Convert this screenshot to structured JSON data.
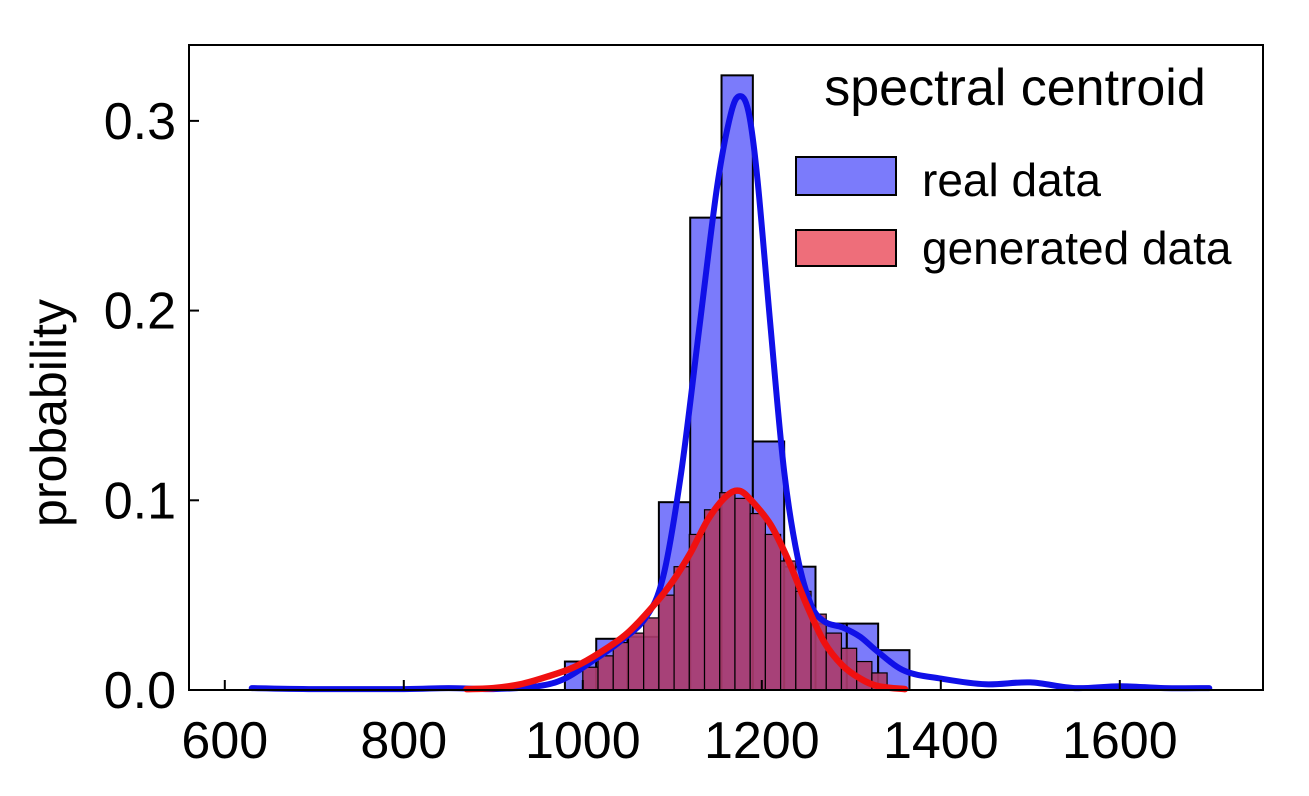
{
  "chart_data": {
    "type": "bar",
    "title": "spectral centroid",
    "xlabel": "",
    "ylabel": "probability",
    "xlim": [
      560,
      1760
    ],
    "ylim": [
      0,
      0.34
    ],
    "xticks": [
      "600",
      "800",
      "1000",
      "1200",
      "1400",
      "1600"
    ],
    "xtick_values": [
      600,
      800,
      1000,
      1200,
      1400,
      1600
    ],
    "yticks": [
      "0.0",
      "0.1",
      "0.2",
      "0.3"
    ],
    "ytick_values": [
      0,
      0.1,
      0.2,
      0.3
    ],
    "grid": false,
    "legend_position": "top-right",
    "colors": {
      "real_fill": "#7b7bfb",
      "real_line": "#1010e8",
      "gen_fill": "#ee6e7a",
      "gen_line": "#f01010",
      "overlap_fill": "#aa3c6c"
    },
    "series": [
      {
        "name": "real data",
        "kind": "histogram",
        "bins": [
          {
            "x0": 980,
            "x1": 1015,
            "value": 0.015
          },
          {
            "x0": 1015,
            "x1": 1050,
            "value": 0.027
          },
          {
            "x0": 1050,
            "x1": 1085,
            "value": 0.028
          },
          {
            "x0": 1085,
            "x1": 1120,
            "value": 0.099
          },
          {
            "x0": 1120,
            "x1": 1155,
            "value": 0.249
          },
          {
            "x0": 1155,
            "x1": 1190,
            "value": 0.324
          },
          {
            "x0": 1190,
            "x1": 1225,
            "value": 0.131
          },
          {
            "x0": 1225,
            "x1": 1260,
            "value": 0.065
          },
          {
            "x0": 1260,
            "x1": 1295,
            "value": 0.035
          },
          {
            "x0": 1295,
            "x1": 1330,
            "value": 0.035
          },
          {
            "x0": 1330,
            "x1": 1365,
            "value": 0.021
          }
        ]
      },
      {
        "name": "generated data",
        "kind": "histogram",
        "bins": [
          {
            "x0": 1000,
            "x1": 1017,
            "value": 0.012
          },
          {
            "x0": 1017,
            "x1": 1034,
            "value": 0.018
          },
          {
            "x0": 1034,
            "x1": 1051,
            "value": 0.025
          },
          {
            "x0": 1051,
            "x1": 1068,
            "value": 0.03
          },
          {
            "x0": 1068,
            "x1": 1085,
            "value": 0.038
          },
          {
            "x0": 1085,
            "x1": 1102,
            "value": 0.05
          },
          {
            "x0": 1102,
            "x1": 1119,
            "value": 0.065
          },
          {
            "x0": 1119,
            "x1": 1136,
            "value": 0.082
          },
          {
            "x0": 1136,
            "x1": 1153,
            "value": 0.095
          },
          {
            "x0": 1153,
            "x1": 1170,
            "value": 0.104
          },
          {
            "x0": 1170,
            "x1": 1187,
            "value": 0.101
          },
          {
            "x0": 1187,
            "x1": 1204,
            "value": 0.093
          },
          {
            "x0": 1204,
            "x1": 1221,
            "value": 0.082
          },
          {
            "x0": 1221,
            "x1": 1238,
            "value": 0.068
          },
          {
            "x0": 1238,
            "x1": 1255,
            "value": 0.052
          },
          {
            "x0": 1255,
            "x1": 1272,
            "value": 0.04
          },
          {
            "x0": 1272,
            "x1": 1289,
            "value": 0.03
          },
          {
            "x0": 1289,
            "x1": 1306,
            "value": 0.022
          },
          {
            "x0": 1306,
            "x1": 1323,
            "value": 0.015
          },
          {
            "x0": 1323,
            "x1": 1340,
            "value": 0.009
          }
        ]
      }
    ],
    "kde": [
      {
        "name": "real data",
        "x": [
          630,
          700,
          800,
          850,
          900,
          950,
          980,
          1010,
          1040,
          1070,
          1090,
          1110,
          1130,
          1150,
          1165,
          1175,
          1185,
          1195,
          1210,
          1225,
          1240,
          1255,
          1270,
          1290,
          1310,
          1330,
          1360,
          1400,
          1450,
          1500,
          1550,
          1600,
          1650,
          1700
        ],
        "y": [
          0.001,
          0.0005,
          0.0005,
          0.001,
          0.0005,
          0.002,
          0.006,
          0.015,
          0.025,
          0.038,
          0.06,
          0.115,
          0.19,
          0.265,
          0.303,
          0.313,
          0.305,
          0.27,
          0.19,
          0.115,
          0.07,
          0.045,
          0.036,
          0.033,
          0.028,
          0.02,
          0.01,
          0.006,
          0.003,
          0.004,
          0.001,
          0.002,
          0.001,
          0.001
        ]
      },
      {
        "name": "generated data",
        "x": [
          870,
          900,
          930,
          960,
          990,
          1020,
          1050,
          1080,
          1100,
          1120,
          1140,
          1160,
          1175,
          1190,
          1210,
          1230,
          1250,
          1270,
          1290,
          1310,
          1330,
          1360
        ],
        "y": [
          0.0005,
          0.001,
          0.003,
          0.007,
          0.012,
          0.02,
          0.03,
          0.045,
          0.057,
          0.072,
          0.09,
          0.102,
          0.105,
          0.099,
          0.087,
          0.068,
          0.045,
          0.025,
          0.013,
          0.006,
          0.002,
          0.0005
        ]
      }
    ]
  }
}
